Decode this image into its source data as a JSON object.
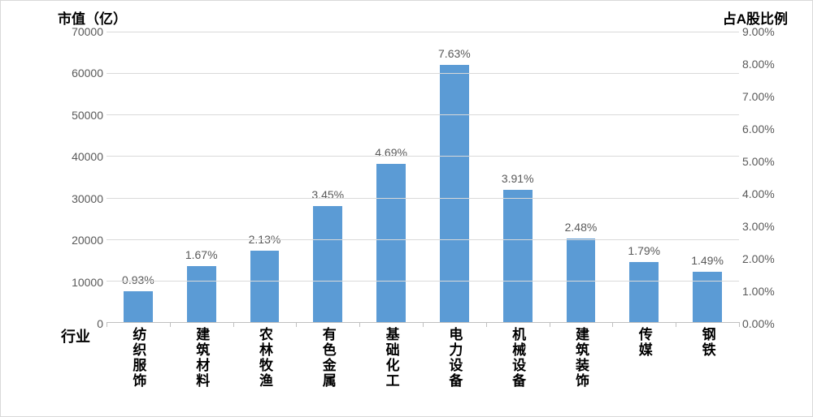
{
  "chart": {
    "type": "bar",
    "left_axis_title": "市值（亿）",
    "right_axis_title": "占A股比例",
    "x_axis_title": "行业",
    "background_color": "#ffffff",
    "border_color": "#d9d9d9",
    "grid_color": "#d9d9d9",
    "baseline_color": "#bfbfbf",
    "bar_color": "#5b9bd5",
    "tick_text_color": "#595959",
    "title_text_color": "#000000",
    "title_fontsize": 17,
    "tick_fontsize": 14,
    "datalabel_fontsize": 14,
    "xlabel_fontsize": 17,
    "bar_width_ratio": 0.46,
    "y_left": {
      "min": 0,
      "max": 70000,
      "step": 10000,
      "ticks": [
        "0",
        "10000",
        "20000",
        "30000",
        "40000",
        "50000",
        "60000",
        "70000"
      ]
    },
    "y_right": {
      "min": 0,
      "max": 9,
      "step": 1,
      "ticks": [
        "0.00%",
        "1.00%",
        "2.00%",
        "3.00%",
        "4.00%",
        "5.00%",
        "6.00%",
        "7.00%",
        "8.00%",
        "9.00%"
      ]
    },
    "categories": [
      "纺织服饰",
      "建筑材料",
      "农林牧渔",
      "有色金属",
      "基础化工",
      "电力设备",
      "机械设备",
      "建筑装饰",
      "传媒",
      "钢铁"
    ],
    "values": [
      7500,
      13500,
      17300,
      28000,
      38100,
      62000,
      31800,
      20100,
      14500,
      12100
    ],
    "data_labels": [
      "0.93%",
      "1.67%",
      "2.13%",
      "3.45%",
      "4.69%",
      "7.63%",
      "3.91%",
      "2.48%",
      "1.79%",
      "1.49%"
    ]
  }
}
